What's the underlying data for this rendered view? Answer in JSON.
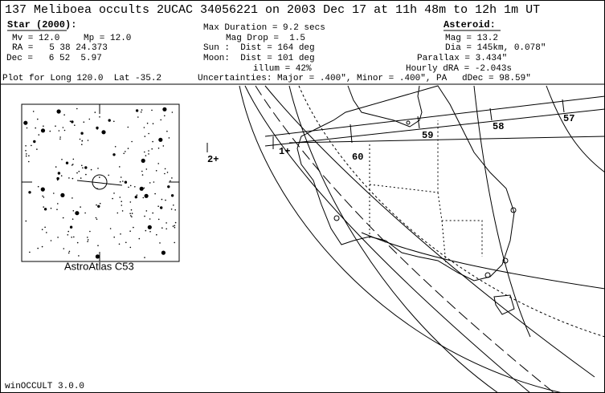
{
  "header": {
    "title": "137 Meliboea occults 2UCAC 34056221 on 2003 Dec 17 at 11h 48m to 12h 1m UT"
  },
  "star": {
    "heading": "Star (2000):",
    "lines": [
      "Mv = 12.0",
      "Mp = 12.0",
      "RA =   5 38 24.373",
      "Dec =   6 52  5.97"
    ]
  },
  "circumstances": {
    "lines": [
      "Max Duration = 9.2 secs",
      "Mag Drop =  1.5",
      "Sun :  Dist = 164 deg",
      "Moon:  Dist = 101 deg",
      "illum = 42%"
    ]
  },
  "asteroid": {
    "heading": "Asteroid:",
    "lines": [
      "Mag = 13.2",
      "Dia = 145km, 0.078\"",
      "Parallax = 3.434\"",
      "Hourly dRA = -2.043s",
      "dDec = 98.59\""
    ]
  },
  "plot_location": "Plot for Long 120.0  Lat -35.2",
  "uncertainties": "Uncertainties: Major = .400\", Minor = .400\", PA",
  "map": {
    "labels": [
      "57",
      "58",
      "59",
      "60",
      "1+",
      "2+"
    ]
  },
  "star_chart": {
    "caption": "AstroAtlas C53"
  },
  "footer": "winOCCULT 3.0.0"
}
